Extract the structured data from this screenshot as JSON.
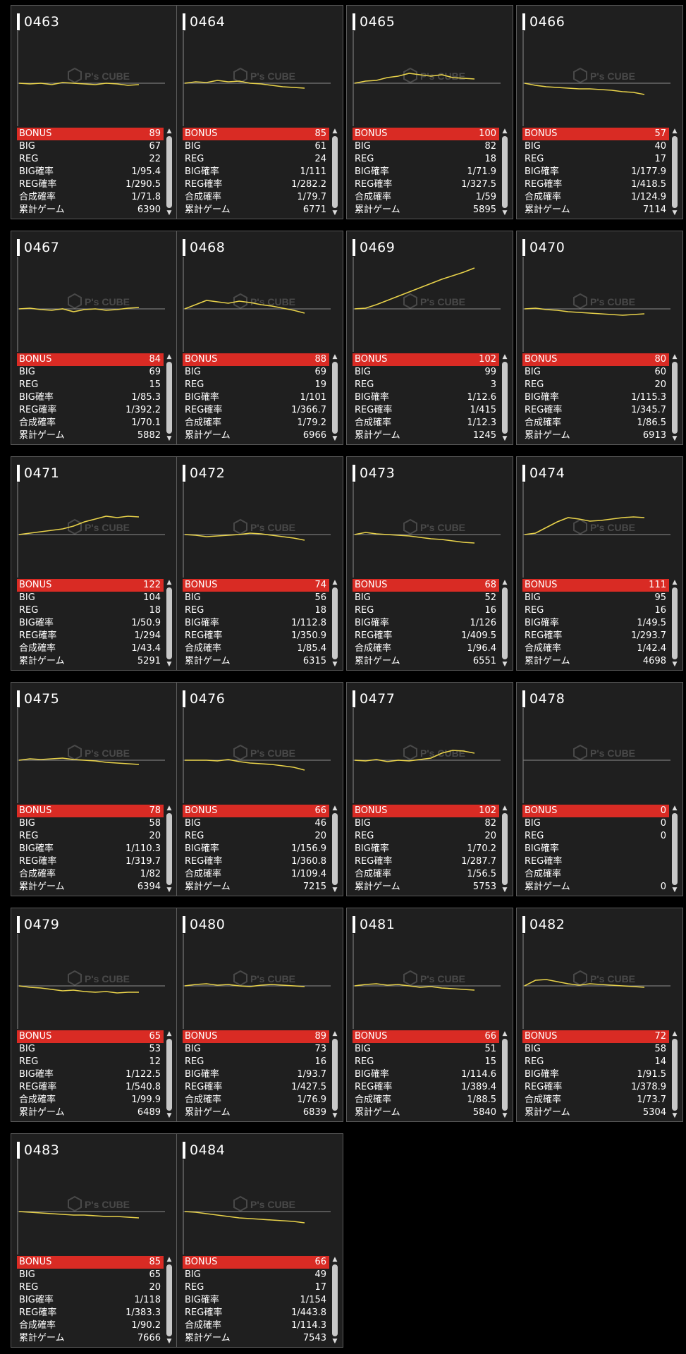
{
  "stat_labels": {
    "bonus": "BONUS",
    "big": "BIG",
    "reg": "REG",
    "big_rate": "BIG確率",
    "reg_rate": "REG確率",
    "combined_rate": "合成確率",
    "total_games": "累計ゲーム"
  },
  "watermark": "P's CUBE",
  "colors": {
    "bonus_row": "#d92b24",
    "graph_line": "#e8d24a",
    "card_bg": "#1f1f1f",
    "axis": "#777777"
  },
  "machines": [
    {
      "id": "0463",
      "bonus": "89",
      "big": "67",
      "reg": "22",
      "big_rate": "1/95.4",
      "reg_rate": "1/290.5",
      "combined_rate": "1/71.8",
      "total_games": "6390",
      "trend": [
        0,
        -1,
        0,
        -2,
        1,
        0,
        -1,
        -2,
        0,
        -1,
        -3,
        -2
      ]
    },
    {
      "id": "0464",
      "bonus": "85",
      "big": "61",
      "reg": "24",
      "big_rate": "1/111",
      "reg_rate": "1/282.2",
      "combined_rate": "1/79.7",
      "total_games": "6771",
      "trend": [
        0,
        2,
        1,
        4,
        2,
        3,
        0,
        -1,
        -3,
        -5,
        -6,
        -7
      ]
    },
    {
      "id": "0465",
      "bonus": "100",
      "big": "82",
      "reg": "18",
      "big_rate": "1/71.9",
      "reg_rate": "1/327.5",
      "combined_rate": "1/59",
      "total_games": "5895",
      "trend": [
        0,
        3,
        4,
        8,
        10,
        14,
        12,
        10,
        12,
        8,
        7,
        6
      ]
    },
    {
      "id": "0466",
      "bonus": "57",
      "big": "40",
      "reg": "17",
      "big_rate": "1/177.9",
      "reg_rate": "1/418.5",
      "combined_rate": "1/124.9",
      "total_games": "7114",
      "trend": [
        0,
        -3,
        -5,
        -6,
        -7,
        -8,
        -8,
        -9,
        -10,
        -12,
        -13,
        -16
      ]
    },
    {
      "id": "0467",
      "bonus": "84",
      "big": "69",
      "reg": "15",
      "big_rate": "1/85.3",
      "reg_rate": "1/392.2",
      "combined_rate": "1/70.1",
      "total_games": "5882",
      "trend": [
        0,
        1,
        -1,
        -2,
        0,
        -4,
        -1,
        0,
        -2,
        -1,
        1,
        2
      ]
    },
    {
      "id": "0468",
      "bonus": "88",
      "big": "69",
      "reg": "19",
      "big_rate": "1/101",
      "reg_rate": "1/366.7",
      "combined_rate": "1/79.2",
      "total_games": "6966",
      "trend": [
        0,
        6,
        12,
        10,
        8,
        11,
        9,
        6,
        4,
        1,
        -2,
        -6
      ]
    },
    {
      "id": "0469",
      "bonus": "102",
      "big": "99",
      "reg": "3",
      "big_rate": "1/12.6",
      "reg_rate": "1/415",
      "combined_rate": "1/12.3",
      "total_games": "1245",
      "trend": [
        0,
        1,
        6,
        12,
        18,
        24,
        30,
        36,
        42,
        47,
        52,
        58
      ]
    },
    {
      "id": "0470",
      "bonus": "80",
      "big": "60",
      "reg": "20",
      "big_rate": "1/115.3",
      "reg_rate": "1/345.7",
      "combined_rate": "1/86.5",
      "total_games": "6913",
      "trend": [
        0,
        1,
        -1,
        -2,
        -4,
        -5,
        -6,
        -7,
        -8,
        -9,
        -8,
        -7
      ]
    },
    {
      "id": "0471",
      "bonus": "122",
      "big": "104",
      "reg": "18",
      "big_rate": "1/50.9",
      "reg_rate": "1/294",
      "combined_rate": "1/43.4",
      "total_games": "5291",
      "trend": [
        0,
        2,
        4,
        6,
        8,
        12,
        18,
        22,
        26,
        24,
        26,
        25
      ]
    },
    {
      "id": "0472",
      "bonus": "74",
      "big": "56",
      "reg": "18",
      "big_rate": "1/112.8",
      "reg_rate": "1/350.9",
      "combined_rate": "1/85.4",
      "total_games": "6315",
      "trend": [
        0,
        -1,
        -3,
        -2,
        -1,
        0,
        2,
        1,
        -1,
        -3,
        -5,
        -8
      ]
    },
    {
      "id": "0473",
      "bonus": "68",
      "big": "52",
      "reg": "16",
      "big_rate": "1/126",
      "reg_rate": "1/409.5",
      "combined_rate": "1/96.4",
      "total_games": "6551",
      "trend": [
        0,
        3,
        1,
        0,
        -1,
        -2,
        -4,
        -6,
        -7,
        -9,
        -11,
        -12
      ]
    },
    {
      "id": "0474",
      "bonus": "111",
      "big": "95",
      "reg": "16",
      "big_rate": "1/49.5",
      "reg_rate": "1/293.7",
      "combined_rate": "1/42.4",
      "total_games": "4698",
      "trend": [
        0,
        2,
        10,
        18,
        24,
        22,
        19,
        20,
        22,
        24,
        25,
        24
      ]
    },
    {
      "id": "0475",
      "bonus": "78",
      "big": "58",
      "reg": "20",
      "big_rate": "1/110.3",
      "reg_rate": "1/319.7",
      "combined_rate": "1/82",
      "total_games": "6394",
      "trend": [
        0,
        2,
        1,
        2,
        3,
        1,
        0,
        -1,
        -3,
        -4,
        -5,
        -6
      ]
    },
    {
      "id": "0476",
      "bonus": "66",
      "big": "46",
      "reg": "20",
      "big_rate": "1/156.9",
      "reg_rate": "1/360.8",
      "combined_rate": "1/109.4",
      "total_games": "7215",
      "trend": [
        0,
        0,
        0,
        -1,
        1,
        -2,
        -4,
        -5,
        -6,
        -8,
        -10,
        -14
      ]
    },
    {
      "id": "0477",
      "bonus": "102",
      "big": "82",
      "reg": "20",
      "big_rate": "1/70.2",
      "reg_rate": "1/287.7",
      "combined_rate": "1/56.5",
      "total_games": "5753",
      "trend": [
        0,
        -1,
        1,
        -2,
        0,
        -1,
        1,
        3,
        10,
        14,
        13,
        10
      ]
    },
    {
      "id": "0478",
      "bonus": "0",
      "big": "0",
      "reg": "0",
      "big_rate": "",
      "reg_rate": "",
      "combined_rate": "",
      "total_games": "0",
      "trend": []
    },
    {
      "id": "0479",
      "bonus": "65",
      "big": "53",
      "reg": "12",
      "big_rate": "1/122.5",
      "reg_rate": "1/540.8",
      "combined_rate": "1/99.9",
      "total_games": "6489",
      "trend": [
        0,
        -2,
        -3,
        -5,
        -7,
        -6,
        -8,
        -9,
        -8,
        -10,
        -9,
        -9
      ]
    },
    {
      "id": "0480",
      "bonus": "89",
      "big": "73",
      "reg": "16",
      "big_rate": "1/93.7",
      "reg_rate": "1/427.5",
      "combined_rate": "1/76.9",
      "total_games": "6839",
      "trend": [
        0,
        2,
        3,
        1,
        2,
        0,
        -1,
        1,
        2,
        1,
        0,
        -1
      ]
    },
    {
      "id": "0481",
      "bonus": "66",
      "big": "51",
      "reg": "15",
      "big_rate": "1/114.6",
      "reg_rate": "1/389.4",
      "combined_rate": "1/88.5",
      "total_games": "5840",
      "trend": [
        0,
        2,
        3,
        1,
        2,
        0,
        -2,
        -1,
        -3,
        -4,
        -5,
        -6
      ]
    },
    {
      "id": "0482",
      "bonus": "72",
      "big": "58",
      "reg": "14",
      "big_rate": "1/91.5",
      "reg_rate": "1/378.9",
      "combined_rate": "1/73.7",
      "total_games": "5304",
      "trend": [
        0,
        8,
        9,
        6,
        3,
        1,
        3,
        2,
        1,
        0,
        -1,
        -2
      ]
    },
    {
      "id": "0483",
      "bonus": "85",
      "big": "65",
      "reg": "20",
      "big_rate": "1/118",
      "reg_rate": "1/383.3",
      "combined_rate": "1/90.2",
      "total_games": "7666",
      "trend": [
        0,
        -1,
        -2,
        -3,
        -4,
        -5,
        -5,
        -6,
        -7,
        -7,
        -8,
        -9
      ]
    },
    {
      "id": "0484",
      "bonus": "66",
      "big": "49",
      "reg": "17",
      "big_rate": "1/154",
      "reg_rate": "1/443.8",
      "combined_rate": "1/114.3",
      "total_games": "7543",
      "trend": [
        0,
        -1,
        -3,
        -5,
        -7,
        -9,
        -10,
        -11,
        -12,
        -13,
        -14,
        -16
      ]
    }
  ]
}
